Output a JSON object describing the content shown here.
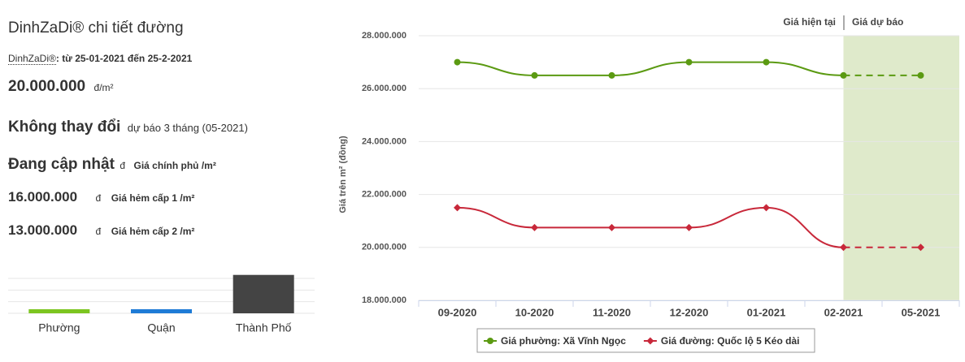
{
  "panel": {
    "title": "DinhZaDi® chi tiết đường",
    "brand": "DinhZaDi®",
    "period": ": từ 25-01-2021 đến 25-2-2021",
    "price": "20.000.000",
    "price_unit": "đ/m²",
    "trend": "Không thay đổi",
    "forecast": "dự báo 3 tháng (05-2021)",
    "rows": [
      {
        "value": "Đang cập nhật",
        "unit": "đ",
        "label": "Giá chính phủ /m²"
      },
      {
        "value": "16.000.000",
        "unit": "đ",
        "label": "Giá hẻm cấp 1 /m²"
      },
      {
        "value": "13.000.000",
        "unit": "đ",
        "label": "Giá hẻm cấp 2 /m²"
      }
    ]
  },
  "chart_data": [
    {
      "type": "bar",
      "categories": [
        "Phường",
        "Quận",
        "Thành Phố"
      ],
      "values": [
        0.35,
        0.35,
        3.3
      ],
      "colors": [
        "#7cc520",
        "#1e7bd6",
        "#444444"
      ],
      "ylim": [
        0,
        3
      ],
      "yticks": [
        0,
        1,
        2,
        3
      ],
      "grid": true
    },
    {
      "type": "line",
      "header": [
        "Giá hiện tại",
        "Giá dự báo"
      ],
      "ylabel": "Giá trên m² (đồng)",
      "categories": [
        "09-2020",
        "10-2020",
        "11-2020",
        "12-2020",
        "01-2021",
        "02-2021",
        "05-2021"
      ],
      "series": [
        {
          "name": "Giá phường: Xã Vĩnh Ngọc",
          "color": "#5b9a12",
          "marker": "circle",
          "values": [
            27000000,
            26500000,
            26500000,
            27000000,
            27000000,
            26500000,
            26500000
          ]
        },
        {
          "name": "Giá đường: Quốc lộ 5 Kéo dài",
          "color": "#c8283a",
          "marker": "diamond",
          "values": [
            21500000,
            20750000,
            20750000,
            20750000,
            21500000,
            20000000,
            20000000
          ]
        }
      ],
      "ylim": [
        18000000,
        28000000
      ],
      "yticks": [
        {
          "value": 18000000,
          "label": "18.000.000"
        },
        {
          "value": 20000000,
          "label": "20.000.000"
        },
        {
          "value": 22000000,
          "label": "22.000.000"
        },
        {
          "value": 24000000,
          "label": "24.000.000"
        },
        {
          "value": 26000000,
          "label": "26.000.000"
        },
        {
          "value": 28000000,
          "label": "28.000.000"
        }
      ],
      "grid": true,
      "forecast_color": "#dfeacb"
    }
  ]
}
